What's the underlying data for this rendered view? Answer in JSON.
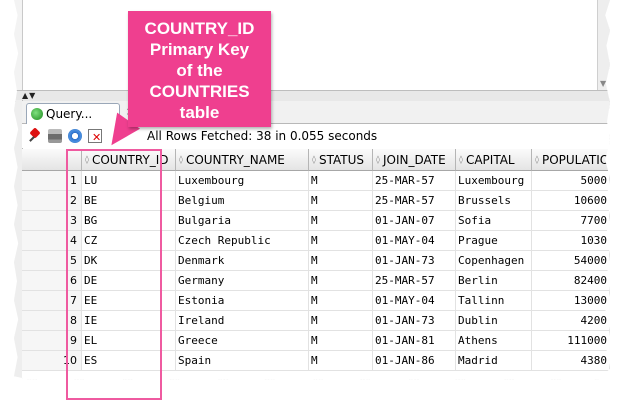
{
  "tab": {
    "label": "Query..."
  },
  "toolbar": {
    "status": "All Rows Fetched: 38 in 0.055 seconds"
  },
  "grid": {
    "columns": [
      "COUNTRY_ID",
      "COUNTRY_NAME",
      "STATUS",
      "JOIN_DATE",
      "CAPITAL",
      "POPULATIO"
    ],
    "rows": [
      [
        "1",
        "LU",
        "Luxembourg",
        "M",
        "25-MAR-57",
        "Luxembourg",
        "5000"
      ],
      [
        "2",
        "BE",
        "Belgium",
        "M",
        "25-MAR-57",
        "Brussels",
        "10600"
      ],
      [
        "3",
        "BG",
        "Bulgaria",
        "M",
        "01-JAN-07",
        "Sofia",
        "7700"
      ],
      [
        "4",
        "CZ",
        "Czech Republic",
        "M",
        "01-MAY-04",
        "Prague",
        "1030"
      ],
      [
        "5",
        "DK",
        "Denmark",
        "M",
        "01-JAN-73",
        "Copenhagen",
        "54000"
      ],
      [
        "6",
        "DE",
        "Germany",
        "M",
        "25-MAR-57",
        "Berlin",
        "82400"
      ],
      [
        "7",
        "EE",
        "Estonia",
        "M",
        "01-MAY-04",
        "Tallinn",
        "13000"
      ],
      [
        "8",
        "IE",
        "Ireland",
        "M",
        "01-JAN-73",
        "Dublin",
        "4200"
      ],
      [
        "9",
        "EL",
        "Greece",
        "M",
        "01-JAN-81",
        "Athens",
        "111000"
      ],
      [
        "10",
        "ES",
        "Spain",
        "M",
        "01-JAN-86",
        "Madrid",
        "4380"
      ]
    ]
  },
  "annotation": {
    "lines": [
      "COUNTRY_ID",
      "Primary Key",
      "of the",
      "COUNTRIES",
      "table"
    ],
    "color": "#ef3f8f"
  },
  "icons": [
    "pin-icon",
    "print-icon",
    "refresh-icon",
    "clear-icon",
    "query-tab-icon",
    "close-icon"
  ]
}
